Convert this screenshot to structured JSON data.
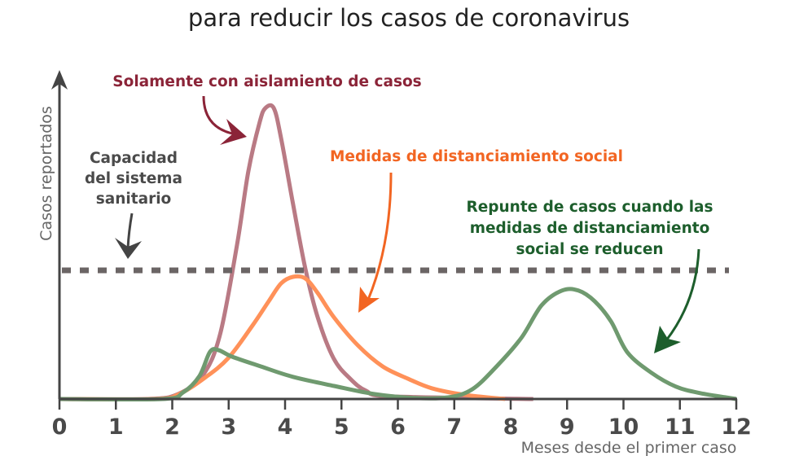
{
  "chart_data": {
    "type": "line",
    "title": "para reducir los casos de coronavirus",
    "xlabel": "Meses desde el primer caso",
    "ylabel": "Casos reportados",
    "xlim": [
      0,
      12
    ],
    "ylim": [
      0,
      100
    ],
    "x_ticks": [
      "0",
      "1",
      "2",
      "3",
      "4",
      "5",
      "6",
      "7",
      "8",
      "9",
      "10",
      "11",
      "12"
    ],
    "grid": false,
    "capacity": {
      "label_lines": [
        "Capacidad",
        "del sistema",
        "sanitario"
      ],
      "value": 39.5,
      "color": "#6b6565"
    },
    "series": [
      {
        "label": "Solamente con aislamiento de casos",
        "color": "#b97a84",
        "label_color": "#8b2438",
        "points": [
          [
            0,
            0
          ],
          [
            1.55,
            0
          ],
          [
            2.1,
            1.5
          ],
          [
            2.55,
            7.5
          ],
          [
            2.85,
            20
          ],
          [
            3.15,
            47.5
          ],
          [
            3.35,
            70
          ],
          [
            3.55,
            85
          ],
          [
            3.65,
            89.3
          ],
          [
            3.8,
            89.3
          ],
          [
            3.93,
            80
          ],
          [
            4.14,
            60
          ],
          [
            4.36,
            40
          ],
          [
            4.58,
            25
          ],
          [
            4.86,
            12.5
          ],
          [
            5.15,
            6.3
          ],
          [
            5.44,
            2.5
          ],
          [
            5.88,
            0.8
          ],
          [
            8.4,
            0
          ]
        ]
      },
      {
        "label": "Medidas de distanciamiento social",
        "color": "#ff9159",
        "label_color": "#f26522",
        "points": [
          [
            0,
            0
          ],
          [
            1.7,
            0
          ],
          [
            2.12,
            1.5
          ],
          [
            2.56,
            6.3
          ],
          [
            2.99,
            12.5
          ],
          [
            3.42,
            22.5
          ],
          [
            3.71,
            30
          ],
          [
            3.93,
            35.5
          ],
          [
            4.14,
            37.5
          ],
          [
            4.36,
            37
          ],
          [
            4.58,
            32.5
          ],
          [
            4.87,
            25
          ],
          [
            5.3,
            16.3
          ],
          [
            5.73,
            10
          ],
          [
            6.17,
            6.3
          ],
          [
            6.6,
            3.3
          ],
          [
            7.18,
            1.3
          ],
          [
            7.9,
            0
          ]
        ]
      },
      {
        "label_lines": [
          "Repunte de casos cuando las",
          "medidas de distanciamiento",
          "social se reducen"
        ],
        "color": "#6f9a6f",
        "label_color": "#1d5e2c",
        "points": [
          [
            0,
            0
          ],
          [
            1.83,
            0
          ],
          [
            2.19,
            2
          ],
          [
            2.48,
            7
          ],
          [
            2.67,
            14.5
          ],
          [
            2.82,
            15
          ],
          [
            3.06,
            13
          ],
          [
            3.57,
            10
          ],
          [
            4.14,
            6.8
          ],
          [
            4.87,
            4
          ],
          [
            5.59,
            1.5
          ],
          [
            6.31,
            0.3
          ],
          [
            6.89,
            0.5
          ],
          [
            7.32,
            3
          ],
          [
            7.75,
            10
          ],
          [
            8.19,
            18.8
          ],
          [
            8.55,
            28.8
          ],
          [
            8.91,
            33.3
          ],
          [
            9.2,
            33.3
          ],
          [
            9.49,
            30
          ],
          [
            9.78,
            23.8
          ],
          [
            10.07,
            14.3
          ],
          [
            10.5,
            8
          ],
          [
            10.93,
            3.8
          ],
          [
            11.36,
            1.8
          ],
          [
            12,
            0
          ]
        ]
      }
    ]
  }
}
